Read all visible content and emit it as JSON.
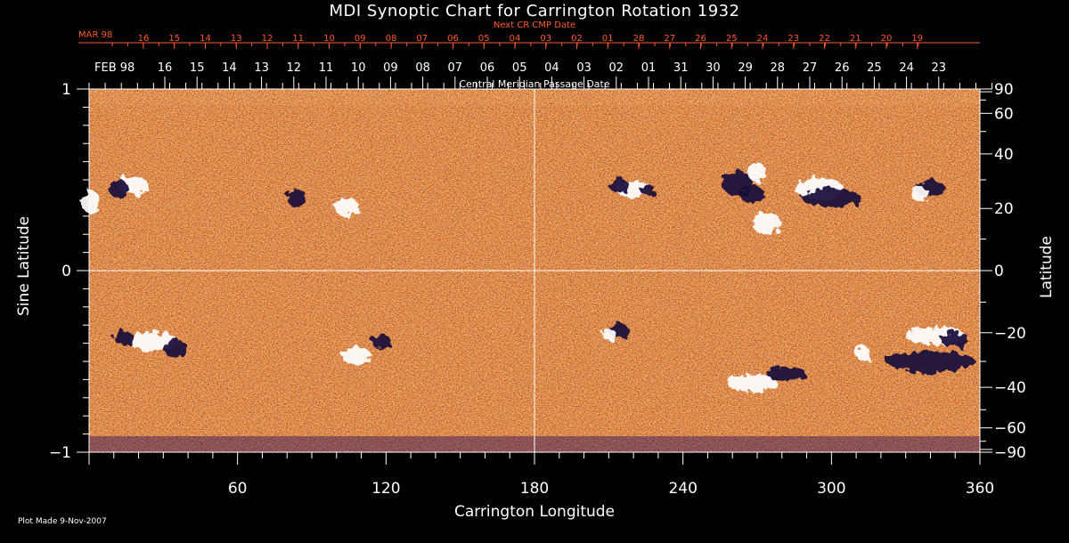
{
  "chart_data": {
    "type": "heatmap",
    "title": "MDI Synoptic Chart for Carrington Rotation 1932",
    "xlabel": "Carrington Longitude",
    "ylabel_left": "Sine Latitude",
    "ylabel_right": "Latitude",
    "xlim": [
      0,
      360
    ],
    "ylim": [
      -1,
      1
    ],
    "x_ticks": [
      "60",
      "120",
      "180",
      "240",
      "300",
      "360"
    ],
    "y_ticks_left": [
      "1",
      "0",
      "−1"
    ],
    "y_ticks_right": [
      "90",
      "60",
      "40",
      "20",
      "0",
      "−20",
      "−40",
      "−60",
      "−90"
    ],
    "top_axis_next_cr": {
      "label": "Next CR CMP Date",
      "month_label": "MAR 98",
      "ticks": [
        "16",
        "15",
        "14",
        "13",
        "12",
        "11",
        "10",
        "09",
        "08",
        "07",
        "06",
        "05",
        "04",
        "03",
        "02",
        "01",
        "28",
        "27",
        "26",
        "25",
        "24",
        "23",
        "22",
        "21",
        "20",
        "19"
      ]
    },
    "top_axis_cmp": {
      "label": "Central Meridian Passage Date",
      "month_label": "FEB 98",
      "ticks": [
        "16",
        "15",
        "14",
        "13",
        "12",
        "11",
        "10",
        "09",
        "08",
        "07",
        "06",
        "05",
        "04",
        "03",
        "02",
        "01",
        "31",
        "30",
        "29",
        "28",
        "27",
        "26",
        "25",
        "24",
        "23"
      ]
    },
    "reference_lines": {
      "x": [
        180
      ],
      "y": [
        0
      ]
    },
    "colors": {
      "background": "#000000",
      "field_base": "#e0570f",
      "field_bright": "#ffd27a",
      "positive_polarity": "#ffffff",
      "negative_polarity": "#1a0a3a",
      "top_axis_accent": "#ff5a2a"
    }
  },
  "footer": "Plot Made  9-Nov-2007"
}
